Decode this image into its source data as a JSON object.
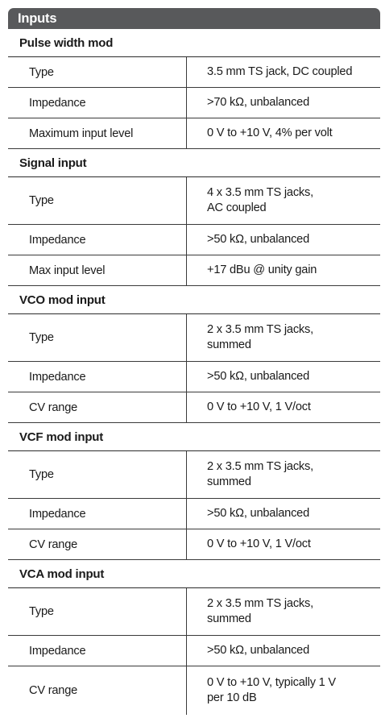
{
  "banner": {
    "title": "Inputs"
  },
  "sections": [
    {
      "title": "Pulse width mod",
      "rows": [
        {
          "label": "Type",
          "value": "3.5 mm TS jack, DC coupled"
        },
        {
          "label": "Impedance",
          "value": ">70 kΩ, unbalanced"
        },
        {
          "label": "Maximum input level",
          "value": "0 V to +10 V, 4% per volt"
        }
      ]
    },
    {
      "title": "Signal input",
      "rows": [
        {
          "label": "Type",
          "value": "4 x 3.5 mm TS jacks,\nAC coupled"
        },
        {
          "label": "Impedance",
          "value": ">50 kΩ, unbalanced"
        },
        {
          "label": "Max input level",
          "value": "+17 dBu @ unity gain"
        }
      ]
    },
    {
      "title": "VCO mod input",
      "rows": [
        {
          "label": "Type",
          "value": "2 x 3.5 mm TS jacks,\nsummed"
        },
        {
          "label": "Impedance",
          "value": ">50 kΩ, unbalanced"
        },
        {
          "label": "CV range",
          "value": "0 V to +10 V, 1 V/oct"
        }
      ]
    },
    {
      "title": "VCF mod input",
      "rows": [
        {
          "label": "Type",
          "value": "2 x 3.5 mm TS jacks,\nsummed"
        },
        {
          "label": "Impedance",
          "value": ">50 kΩ, unbalanced"
        },
        {
          "label": "CV range",
          "value": "0 V to +10 V, 1 V/oct"
        }
      ]
    },
    {
      "title": "VCA mod input",
      "rows": [
        {
          "label": "Type",
          "value": "2 x 3.5 mm TS jacks,\nsummed"
        },
        {
          "label": "Impedance",
          "value": ">50 kΩ, unbalanced"
        },
        {
          "label": "CV range",
          "value": "0 V to +10 V, typically 1 V\nper 10 dB"
        }
      ]
    }
  ]
}
